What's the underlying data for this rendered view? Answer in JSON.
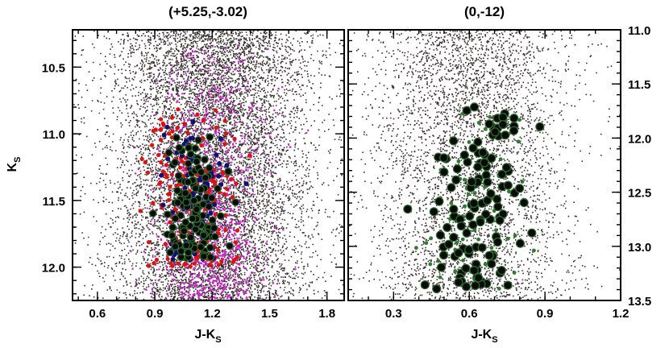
{
  "colors": {
    "field_star": "#3a3030",
    "magenta_star": "#d020d0",
    "red_star": "#e01010",
    "blue_star": "#101070",
    "member_fill": "#0a0a0a",
    "member_ring": "#2d6b2d",
    "green_star": "#2e7a2e",
    "frame": "#000000"
  },
  "chart_data": [
    {
      "type": "scatter",
      "title": "(+5.25,-3.02)",
      "xlabel_main": "J-K",
      "xlabel_sub": "S",
      "ylabel_main": "K",
      "ylabel_sub": "S",
      "xlim": [
        0.47,
        1.89
      ],
      "ylim": [
        12.25,
        10.22
      ],
      "xticks": [
        "0.6",
        "0.9",
        "1.2",
        "1.5",
        "1.8"
      ],
      "yticks": [
        "10.5",
        "11.0",
        "11.5",
        "12.0"
      ],
      "yaxis_side": "left",
      "series": [
        {
          "kind": "field",
          "count": 9000,
          "cx": 1.19,
          "sx": 0.22,
          "ymin": 10.22,
          "ymax": 12.25
        },
        {
          "kind": "magenta",
          "count": 1100,
          "cx": 1.19,
          "sx": 0.14,
          "ymin": 10.3,
          "ymax": 12.25
        },
        {
          "kind": "red",
          "count": 210,
          "cx": 1.1,
          "sx": 0.11,
          "ymin": 10.8,
          "ymax": 12.0
        },
        {
          "kind": "blue",
          "count": 90,
          "cx": 1.1,
          "sx": 0.08,
          "ymin": 10.9,
          "ymax": 11.95
        },
        {
          "kind": "member",
          "count": 130,
          "cx": 1.1,
          "sx": 0.08,
          "ymin": 11.0,
          "ymax": 11.95
        }
      ]
    },
    {
      "type": "scatter",
      "title": "(0,-12)",
      "xlabel_main": "J-K",
      "xlabel_sub": "S",
      "xlim": [
        0.12,
        1.2
      ],
      "ylim": [
        13.5,
        11.0
      ],
      "xticks": [
        "0.3",
        "0.6",
        "0.9",
        "1.2"
      ],
      "yticks": [
        "11.0",
        "11.5",
        "12.0",
        "12.5",
        "13.0",
        "13.5"
      ],
      "yaxis_side": "right",
      "series": [
        {
          "kind": "field",
          "count": 4200,
          "cx": 0.6,
          "sx": 0.16,
          "ymin": 11.0,
          "ymax": 13.5
        },
        {
          "kind": "green",
          "count": 70,
          "cx": 0.65,
          "sx": 0.1,
          "ymin": 11.7,
          "ymax": 13.4
        },
        {
          "kind": "member",
          "count": 120,
          "cx": 0.67,
          "sx": 0.09,
          "ymin": 11.6,
          "ymax": 13.4
        }
      ]
    }
  ]
}
